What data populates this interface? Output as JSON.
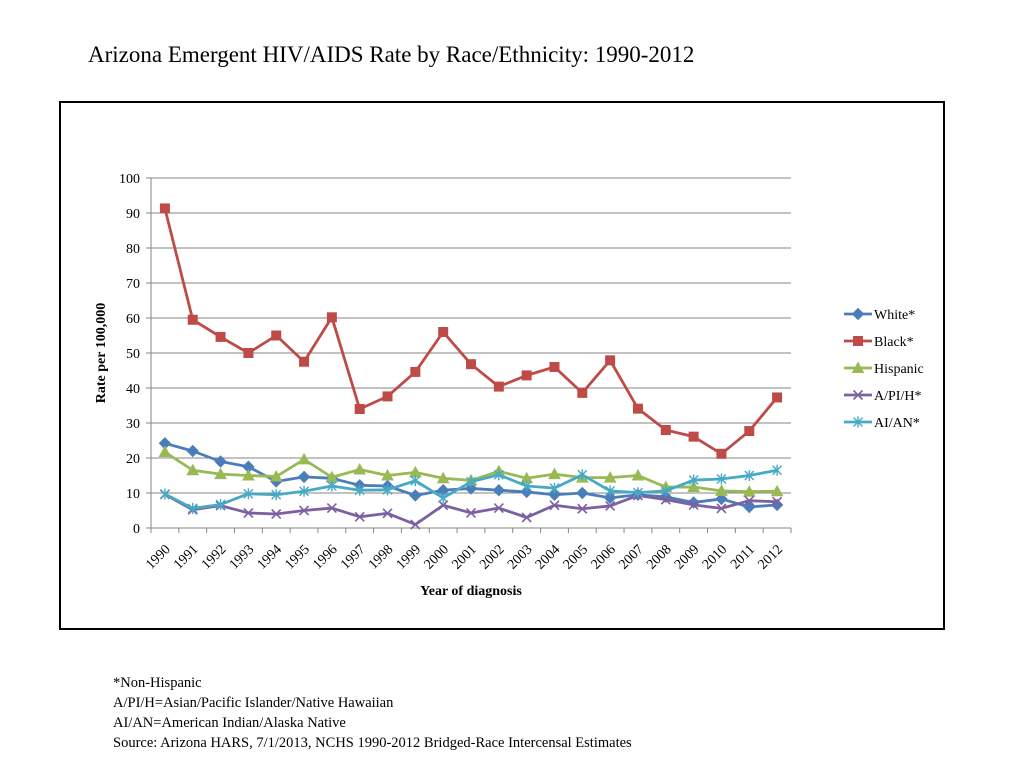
{
  "page_title": "Arizona Emergent HIV/AIDS Rate by Race/Ethnicity: 1990-2012",
  "footnotes": [
    "*Non-Hispanic",
    "A/PI/H=Asian/Pacific Islander/Native Hawaiian",
    "AI/AN=American Indian/Alaska Native",
    "Source: Arizona HARS, 7/1/2013, NCHS 1990-2012 Bridged-Race Intercensal Estimates"
  ],
  "chart_data": {
    "type": "line",
    "title": "",
    "xlabel": "Year of diagnosis",
    "ylabel": "Rate per 100,000",
    "ylim": [
      0,
      100
    ],
    "yticks": [
      0,
      10,
      20,
      30,
      40,
      50,
      60,
      70,
      80,
      90,
      100
    ],
    "grid": true,
    "legend": "right",
    "categories": [
      "1990",
      "1991",
      "1992",
      "1993",
      "1994",
      "1995",
      "1996",
      "1997",
      "1998",
      "1999",
      "2000",
      "2001",
      "2002",
      "2003",
      "2004",
      "2005",
      "2006",
      "2007",
      "2008",
      "2009",
      "2010",
      "2011",
      "2012"
    ],
    "series": [
      {
        "name": "White*",
        "color": "#4A7EBB",
        "marker": "diamond",
        "values": [
          24.2,
          22.0,
          19.0,
          17.5,
          13.3,
          14.6,
          14.2,
          12.2,
          12.0,
          9.3,
          10.8,
          11.3,
          10.8,
          10.3,
          9.5,
          10.0,
          8.6,
          9.5,
          8.9,
          7.3,
          8.3,
          6.0,
          6.6
        ]
      },
      {
        "name": "Black*",
        "color": "#BE4B48",
        "marker": "square",
        "values": [
          91.3,
          59.5,
          54.6,
          50.0,
          55.0,
          47.5,
          60.2,
          34.0,
          37.6,
          44.6,
          56.0,
          46.8,
          40.4,
          43.6,
          46.0,
          38.6,
          47.9,
          34.1,
          28.0,
          26.1,
          21.2,
          27.7,
          37.3
        ]
      },
      {
        "name": "Hispanic",
        "color": "#98B954",
        "marker": "triangle",
        "values": [
          21.7,
          16.5,
          15.4,
          15.0,
          14.7,
          19.6,
          14.5,
          16.7,
          15.0,
          15.9,
          14.2,
          13.6,
          16.2,
          14.2,
          15.4,
          14.4,
          14.4,
          15.0,
          11.7,
          11.7,
          10.6,
          10.4,
          10.5
        ]
      },
      {
        "name": "A/PI/H*",
        "color": "#7D60A0",
        "marker": "x",
        "values": [
          9.6,
          5.2,
          6.4,
          4.3,
          4.0,
          5.0,
          5.7,
          3.2,
          4.2,
          1.0,
          6.5,
          4.3,
          5.7,
          3.0,
          6.5,
          5.5,
          6.3,
          9.3,
          8.1,
          6.6,
          5.6,
          7.8,
          7.5
        ]
      },
      {
        "name": "AI/AN*",
        "color": "#46AAC5",
        "marker": "star",
        "values": [
          9.7,
          5.6,
          6.7,
          9.8,
          9.5,
          10.5,
          12.0,
          10.8,
          10.9,
          13.5,
          8.6,
          13.2,
          15.2,
          12.0,
          11.4,
          15.2,
          10.6,
          10.1,
          10.6,
          13.7,
          14.0,
          15.0,
          16.5
        ]
      }
    ]
  }
}
